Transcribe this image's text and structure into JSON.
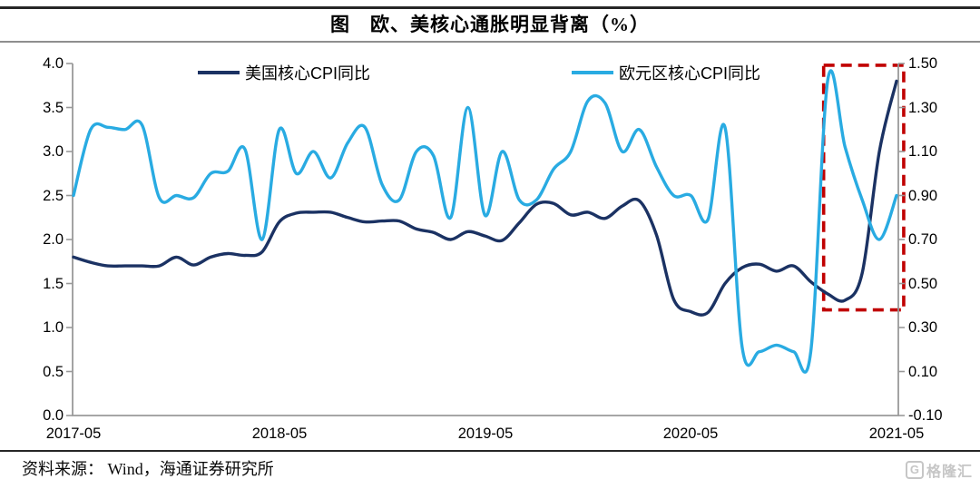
{
  "header": {
    "title": "图　欧、美核心通胀明显背离（%）"
  },
  "legend": [
    {
      "label": "美国核心CPI同比",
      "color": "#1b3263"
    },
    {
      "label": "欧元区核心CPI同比",
      "color": "#29abe2"
    }
  ],
  "footer": {
    "source_label": "资料来源： Wind，海通证券研究所",
    "logo_g": "G",
    "logo_text": "格隆汇"
  },
  "chart_data": {
    "type": "line",
    "title": "图　欧、美核心通胀明显背离（%）",
    "x_start": "2017-05",
    "x_end": "2021-05",
    "frequency": "monthly",
    "x_tick_labels": [
      "2017-05",
      "2018-05",
      "2019-05",
      "2020-05",
      "2021-05"
    ],
    "left_axis": {
      "min": 0.0,
      "max": 4.0,
      "ticks": [
        "4.0",
        "3.5",
        "3.0",
        "2.5",
        "2.0",
        "1.5",
        "1.0",
        "0.5",
        "0.0"
      ]
    },
    "right_axis": {
      "min": -0.1,
      "max": 1.5,
      "ticks": [
        "1.50",
        "1.30",
        "1.10",
        "0.90",
        "0.70",
        "0.50",
        "0.30",
        "0.10",
        "-0.10"
      ]
    },
    "grid": false,
    "legend_position": "top-inside",
    "series": [
      {
        "name": "美国核心CPI同比",
        "axis": "left",
        "color": "#1b3263",
        "values": [
          1.8,
          1.74,
          1.7,
          1.7,
          1.7,
          1.7,
          1.8,
          1.71,
          1.8,
          1.84,
          1.82,
          1.86,
          2.2,
          2.3,
          2.31,
          2.31,
          2.25,
          2.2,
          2.21,
          2.21,
          2.12,
          2.08,
          2.0,
          2.09,
          2.04,
          1.99,
          2.19,
          2.4,
          2.41,
          2.28,
          2.31,
          2.24,
          2.38,
          2.44,
          2.05,
          1.32,
          1.18,
          1.17,
          1.5,
          1.68,
          1.72,
          1.64,
          1.7,
          1.52,
          1.38,
          1.31,
          1.62,
          3.0,
          3.8
        ]
      },
      {
        "name": "欧元区核心CPI同比",
        "axis": "right",
        "color": "#29abe2",
        "values": [
          0.9,
          1.2,
          1.21,
          1.2,
          1.22,
          0.89,
          0.9,
          0.89,
          1.0,
          1.01,
          1.11,
          0.7,
          1.2,
          1.0,
          1.1,
          0.98,
          1.14,
          1.21,
          0.95,
          0.88,
          1.1,
          1.08,
          0.8,
          1.3,
          0.81,
          1.1,
          0.88,
          0.88,
          1.02,
          1.1,
          1.33,
          1.32,
          1.1,
          1.2,
          1.03,
          0.9,
          0.9,
          0.79,
          1.21,
          0.21,
          0.19,
          0.22,
          0.19,
          0.19,
          1.43,
          1.12,
          0.88,
          0.7,
          0.9
        ]
      }
    ],
    "highlight_box": {
      "color": "#c00000",
      "style": "dashed",
      "from_month": 43.75,
      "to_month": 48.42,
      "top_left_value": 3.98,
      "bottom_left_value": 1.2
    },
    "axis_color": "#999999"
  }
}
